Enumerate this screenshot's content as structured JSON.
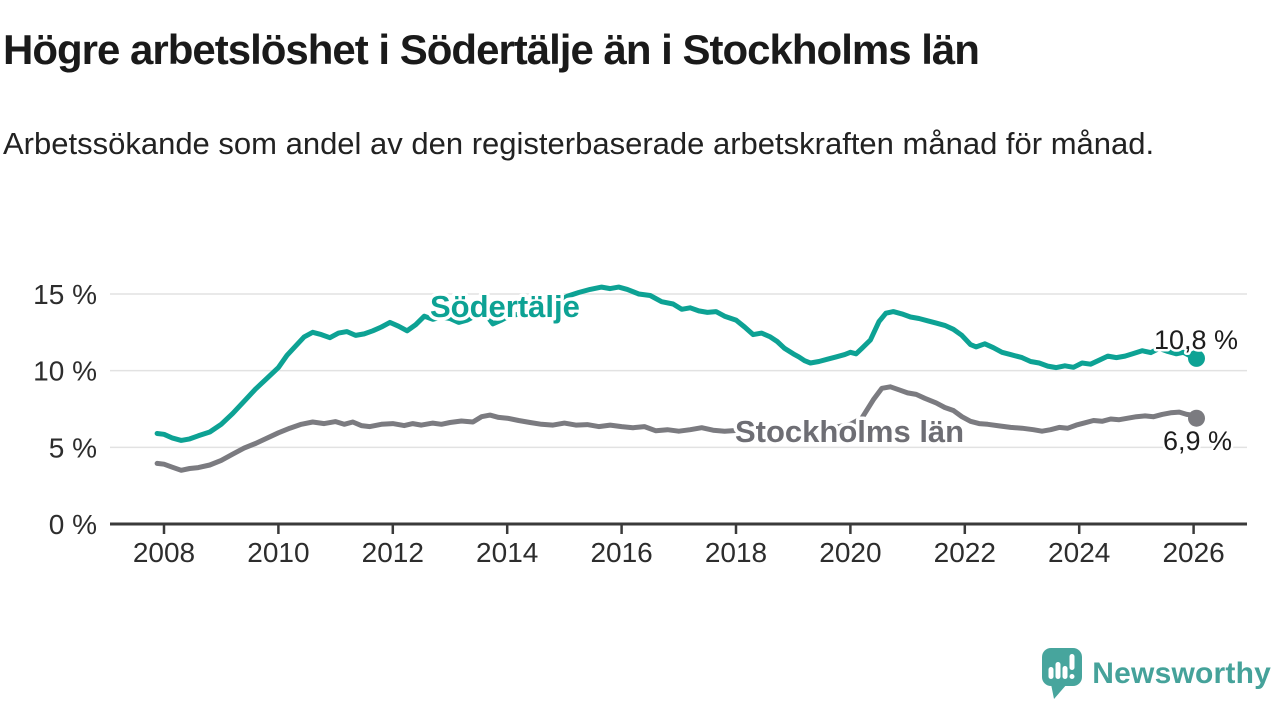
{
  "title": "Högre arbetslöshet i Södertälje än i Stockholms län",
  "subtitle": "Arbetssökande som andel av den registerbaserade arbetskraften månad för månad.",
  "branding": {
    "logo_text": "Newsworthy",
    "logo_color": "#45a29a"
  },
  "colors": {
    "sodertalje": "#0da294",
    "stockholm_line": "#7b7b80",
    "stockholm_label": "#6e6e74",
    "grid": "#e2e2e2",
    "axis": "#3a3a3a",
    "text": "#1a1a1a"
  },
  "chart_data": {
    "type": "line",
    "title": "Högre arbetslöshet i Södertälje än i Stockholms län",
    "unit": "%",
    "grid": "horizontal",
    "legend": "inline-labels",
    "xlim": [
      2007.0,
      2026.95
    ],
    "ylim": [
      0,
      16.5
    ],
    "x_ticks": [
      2008,
      2010,
      2012,
      2014,
      2016,
      2018,
      2020,
      2022,
      2024,
      2026
    ],
    "x_tick_labels": [
      "2008",
      "2010",
      "2012",
      "2014",
      "2016",
      "2018",
      "2020",
      "2022",
      "2024",
      "2026"
    ],
    "y_ticks": [
      {
        "value": 0,
        "label": "0 %"
      },
      {
        "value": 5,
        "label": "5 %"
      },
      {
        "value": 10,
        "label": "10 %"
      },
      {
        "value": 15,
        "label": "15 %"
      }
    ],
    "series": [
      {
        "name": "Södertälje",
        "color": "#0da294",
        "label_color": "#0da294",
        "end_label": "10,8 %",
        "end_value": 10.8,
        "points": [
          [
            2007.88,
            5.9
          ],
          [
            2008.0,
            5.85
          ],
          [
            2008.15,
            5.6
          ],
          [
            2008.3,
            5.45
          ],
          [
            2008.45,
            5.55
          ],
          [
            2008.6,
            5.75
          ],
          [
            2008.8,
            6.0
          ],
          [
            2009.0,
            6.5
          ],
          [
            2009.2,
            7.2
          ],
          [
            2009.4,
            8.0
          ],
          [
            2009.6,
            8.8
          ],
          [
            2009.8,
            9.5
          ],
          [
            2010.0,
            10.2
          ],
          [
            2010.15,
            11.0
          ],
          [
            2010.3,
            11.6
          ],
          [
            2010.45,
            12.2
          ],
          [
            2010.6,
            12.5
          ],
          [
            2010.75,
            12.35
          ],
          [
            2010.9,
            12.15
          ],
          [
            2011.05,
            12.45
          ],
          [
            2011.2,
            12.55
          ],
          [
            2011.35,
            12.3
          ],
          [
            2011.5,
            12.4
          ],
          [
            2011.65,
            12.6
          ],
          [
            2011.8,
            12.85
          ],
          [
            2011.95,
            13.15
          ],
          [
            2012.1,
            12.9
          ],
          [
            2012.25,
            12.6
          ],
          [
            2012.4,
            13.0
          ],
          [
            2012.55,
            13.55
          ],
          [
            2012.7,
            13.35
          ],
          [
            2012.85,
            13.5
          ],
          [
            2013.0,
            13.4
          ],
          [
            2013.15,
            13.15
          ],
          [
            2013.3,
            13.3
          ],
          [
            2013.45,
            13.6
          ],
          [
            2013.6,
            13.8
          ],
          [
            2013.75,
            13.05
          ],
          [
            2013.9,
            13.3
          ],
          [
            2014.05,
            13.6
          ],
          [
            2014.25,
            13.7
          ],
          [
            2014.45,
            13.75
          ],
          [
            2014.65,
            14.0
          ],
          [
            2014.85,
            14.4
          ],
          [
            2015.05,
            14.85
          ],
          [
            2015.25,
            15.1
          ],
          [
            2015.45,
            15.3
          ],
          [
            2015.65,
            15.45
          ],
          [
            2015.8,
            15.35
          ],
          [
            2015.95,
            15.45
          ],
          [
            2016.1,
            15.3
          ],
          [
            2016.3,
            15.0
          ],
          [
            2016.5,
            14.9
          ],
          [
            2016.7,
            14.5
          ],
          [
            2016.9,
            14.35
          ],
          [
            2017.05,
            14.0
          ],
          [
            2017.2,
            14.1
          ],
          [
            2017.35,
            13.9
          ],
          [
            2017.5,
            13.8
          ],
          [
            2017.65,
            13.85
          ],
          [
            2017.8,
            13.55
          ],
          [
            2018.0,
            13.3
          ],
          [
            2018.15,
            12.85
          ],
          [
            2018.3,
            12.35
          ],
          [
            2018.45,
            12.45
          ],
          [
            2018.6,
            12.2
          ],
          [
            2018.72,
            11.9
          ],
          [
            2018.85,
            11.45
          ],
          [
            2019.0,
            11.1
          ],
          [
            2019.1,
            10.9
          ],
          [
            2019.2,
            10.65
          ],
          [
            2019.3,
            10.5
          ],
          [
            2019.45,
            10.6
          ],
          [
            2019.6,
            10.75
          ],
          [
            2019.75,
            10.9
          ],
          [
            2019.9,
            11.05
          ],
          [
            2020.0,
            11.2
          ],
          [
            2020.1,
            11.1
          ],
          [
            2020.2,
            11.45
          ],
          [
            2020.35,
            12.0
          ],
          [
            2020.5,
            13.2
          ],
          [
            2020.62,
            13.75
          ],
          [
            2020.75,
            13.85
          ],
          [
            2020.9,
            13.7
          ],
          [
            2021.05,
            13.5
          ],
          [
            2021.2,
            13.4
          ],
          [
            2021.35,
            13.25
          ],
          [
            2021.5,
            13.1
          ],
          [
            2021.65,
            12.95
          ],
          [
            2021.8,
            12.7
          ],
          [
            2021.95,
            12.3
          ],
          [
            2022.1,
            11.7
          ],
          [
            2022.2,
            11.55
          ],
          [
            2022.35,
            11.75
          ],
          [
            2022.5,
            11.5
          ],
          [
            2022.65,
            11.2
          ],
          [
            2022.8,
            11.05
          ],
          [
            2023.0,
            10.85
          ],
          [
            2023.15,
            10.6
          ],
          [
            2023.3,
            10.5
          ],
          [
            2023.45,
            10.3
          ],
          [
            2023.6,
            10.2
          ],
          [
            2023.75,
            10.32
          ],
          [
            2023.9,
            10.22
          ],
          [
            2024.05,
            10.5
          ],
          [
            2024.2,
            10.42
          ],
          [
            2024.35,
            10.68
          ],
          [
            2024.5,
            10.95
          ],
          [
            2024.65,
            10.85
          ],
          [
            2024.8,
            10.95
          ],
          [
            2024.95,
            11.12
          ],
          [
            2025.1,
            11.3
          ],
          [
            2025.25,
            11.18
          ],
          [
            2025.4,
            11.45
          ],
          [
            2025.55,
            11.25
          ],
          [
            2025.7,
            11.1
          ],
          [
            2025.82,
            11.2
          ],
          [
            2025.95,
            10.95
          ],
          [
            2026.05,
            10.8
          ]
        ]
      },
      {
        "name": "Stockholms län",
        "color": "#7b7b80",
        "label_color": "#6e6e74",
        "end_label": "6,9 %",
        "end_value": 6.9,
        "points": [
          [
            2007.88,
            3.95
          ],
          [
            2008.0,
            3.9
          ],
          [
            2008.15,
            3.7
          ],
          [
            2008.3,
            3.5
          ],
          [
            2008.45,
            3.62
          ],
          [
            2008.6,
            3.68
          ],
          [
            2008.8,
            3.85
          ],
          [
            2009.0,
            4.15
          ],
          [
            2009.2,
            4.55
          ],
          [
            2009.4,
            4.95
          ],
          [
            2009.6,
            5.25
          ],
          [
            2009.8,
            5.6
          ],
          [
            2010.0,
            5.95
          ],
          [
            2010.2,
            6.25
          ],
          [
            2010.4,
            6.5
          ],
          [
            2010.6,
            6.65
          ],
          [
            2010.8,
            6.55
          ],
          [
            2011.0,
            6.68
          ],
          [
            2011.15,
            6.5
          ],
          [
            2011.3,
            6.65
          ],
          [
            2011.45,
            6.42
          ],
          [
            2011.6,
            6.35
          ],
          [
            2011.8,
            6.5
          ],
          [
            2012.0,
            6.55
          ],
          [
            2012.2,
            6.42
          ],
          [
            2012.35,
            6.55
          ],
          [
            2012.5,
            6.45
          ],
          [
            2012.7,
            6.58
          ],
          [
            2012.85,
            6.5
          ],
          [
            2013.0,
            6.62
          ],
          [
            2013.2,
            6.72
          ],
          [
            2013.4,
            6.65
          ],
          [
            2013.55,
            7.0
          ],
          [
            2013.7,
            7.1
          ],
          [
            2013.85,
            6.95
          ],
          [
            2014.0,
            6.9
          ],
          [
            2014.2,
            6.75
          ],
          [
            2014.4,
            6.62
          ],
          [
            2014.6,
            6.5
          ],
          [
            2014.8,
            6.45
          ],
          [
            2015.0,
            6.58
          ],
          [
            2015.2,
            6.45
          ],
          [
            2015.4,
            6.48
          ],
          [
            2015.6,
            6.35
          ],
          [
            2015.8,
            6.45
          ],
          [
            2016.0,
            6.35
          ],
          [
            2016.2,
            6.28
          ],
          [
            2016.4,
            6.35
          ],
          [
            2016.6,
            6.08
          ],
          [
            2016.8,
            6.15
          ],
          [
            2017.0,
            6.05
          ],
          [
            2017.2,
            6.15
          ],
          [
            2017.4,
            6.28
          ],
          [
            2017.6,
            6.12
          ],
          [
            2017.8,
            6.05
          ],
          [
            2018.0,
            6.1
          ],
          [
            2018.25,
            6.18
          ],
          [
            2018.5,
            6.1
          ],
          [
            2018.75,
            6.2
          ],
          [
            2019.0,
            6.18
          ],
          [
            2019.25,
            6.25
          ],
          [
            2019.5,
            6.22
          ],
          [
            2019.75,
            6.32
          ],
          [
            2020.0,
            6.5
          ],
          [
            2020.2,
            6.9
          ],
          [
            2020.4,
            8.1
          ],
          [
            2020.55,
            8.85
          ],
          [
            2020.7,
            8.95
          ],
          [
            2020.85,
            8.75
          ],
          [
            2021.0,
            8.55
          ],
          [
            2021.15,
            8.45
          ],
          [
            2021.3,
            8.2
          ],
          [
            2021.5,
            7.9
          ],
          [
            2021.65,
            7.6
          ],
          [
            2021.8,
            7.4
          ],
          [
            2021.95,
            7.0
          ],
          [
            2022.1,
            6.7
          ],
          [
            2022.25,
            6.55
          ],
          [
            2022.4,
            6.5
          ],
          [
            2022.6,
            6.4
          ],
          [
            2022.8,
            6.3
          ],
          [
            2023.0,
            6.25
          ],
          [
            2023.2,
            6.15
          ],
          [
            2023.35,
            6.05
          ],
          [
            2023.5,
            6.15
          ],
          [
            2023.65,
            6.3
          ],
          [
            2023.8,
            6.25
          ],
          [
            2023.95,
            6.45
          ],
          [
            2024.1,
            6.6
          ],
          [
            2024.25,
            6.75
          ],
          [
            2024.4,
            6.7
          ],
          [
            2024.55,
            6.85
          ],
          [
            2024.7,
            6.8
          ],
          [
            2024.85,
            6.9
          ],
          [
            2025.0,
            7.0
          ],
          [
            2025.15,
            7.05
          ],
          [
            2025.3,
            7.0
          ],
          [
            2025.45,
            7.15
          ],
          [
            2025.6,
            7.25
          ],
          [
            2025.75,
            7.3
          ],
          [
            2025.88,
            7.15
          ],
          [
            2026.0,
            7.08
          ],
          [
            2026.05,
            6.9
          ]
        ]
      }
    ]
  }
}
